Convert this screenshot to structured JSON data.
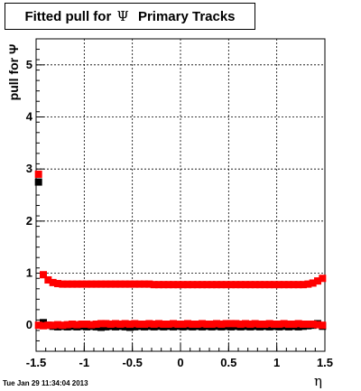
{
  "title": {
    "prefix": "Fitted pull for ",
    "greek": "Ψ",
    "suffix": "  Primary Tracks"
  },
  "footer": {
    "timestamp": "Tue Jan 29 11:34:04 2013"
  },
  "chart_data": {
    "type": "scatter",
    "title": "Fitted pull for Ψ  Primary Tracks",
    "xlabel": "η",
    "ylabel": "pull for Ψ",
    "xlim": [
      -1.5,
      1.5
    ],
    "ylim": [
      -0.5,
      5.5
    ],
    "grid": true,
    "x_ticks": [
      -1.5,
      -1,
      -0.5,
      0,
      0.5,
      1,
      1.5
    ],
    "x_tick_labels": [
      "-1.5",
      "-1",
      "-0.5",
      "0",
      "0.5",
      "1",
      "1.5"
    ],
    "y_ticks": [
      0,
      1,
      2,
      3,
      4,
      5
    ],
    "y_tick_labels": [
      "0",
      "1",
      "2",
      "3",
      "4",
      "5"
    ],
    "series": [
      {
        "color": "#000000",
        "x": [
          -1.475,
          -1.425,
          -1.375,
          -1.325,
          -1.275,
          -1.225,
          -1.175,
          -1.125,
          -1.075,
          -1.025,
          -0.975,
          -0.925,
          -0.875,
          -0.825,
          -0.775,
          -0.725,
          -0.675,
          -0.625,
          -0.575,
          -0.525,
          -0.475,
          -0.425,
          -0.375,
          -0.325,
          -0.275,
          -0.225,
          -0.175,
          -0.125,
          -0.075,
          -0.025,
          0.025,
          0.075,
          0.125,
          0.175,
          0.225,
          0.275,
          0.325,
          0.375,
          0.425,
          0.475,
          0.525,
          0.575,
          0.625,
          0.675,
          0.725,
          0.775,
          0.825,
          0.875,
          0.925,
          0.975,
          1.025,
          1.075,
          1.125,
          1.175,
          1.225,
          1.275,
          1.325,
          1.375,
          1.425,
          1.475
        ],
        "y": [
          2.75,
          0.05,
          0.0,
          -0.02,
          -0.03,
          -0.02,
          -0.03,
          -0.02,
          -0.03,
          -0.02,
          -0.03,
          -0.02,
          -0.03,
          -0.04,
          -0.03,
          -0.02,
          -0.03,
          -0.02,
          -0.03,
          -0.04,
          -0.03,
          -0.02,
          -0.03,
          -0.02,
          -0.03,
          -0.02,
          -0.03,
          -0.02,
          -0.03,
          -0.02,
          -0.03,
          -0.02,
          -0.03,
          -0.02,
          -0.03,
          -0.02,
          -0.03,
          -0.02,
          -0.03,
          -0.02,
          -0.03,
          -0.02,
          -0.03,
          -0.02,
          -0.03,
          -0.02,
          -0.03,
          -0.02,
          -0.03,
          -0.02,
          -0.03,
          -0.02,
          -0.03,
          -0.02,
          -0.03,
          -0.02,
          -0.01,
          0.0,
          0.03,
          -0.02
        ]
      },
      {
        "color": "#ff0000",
        "x": [
          -1.475,
          -1.425,
          -1.375,
          -1.325,
          -1.275,
          -1.225,
          -1.175,
          -1.125,
          -1.075,
          -1.025,
          -0.975,
          -0.925,
          -0.875,
          -0.825,
          -0.775,
          -0.725,
          -0.675,
          -0.625,
          -0.575,
          -0.525,
          -0.475,
          -0.425,
          -0.375,
          -0.325,
          -0.275,
          -0.225,
          -0.175,
          -0.125,
          -0.075,
          -0.025,
          0.025,
          0.075,
          0.125,
          0.175,
          0.225,
          0.275,
          0.325,
          0.375,
          0.425,
          0.475,
          0.525,
          0.575,
          0.625,
          0.675,
          0.725,
          0.775,
          0.825,
          0.875,
          0.925,
          0.975,
          1.025,
          1.075,
          1.125,
          1.175,
          1.225,
          1.275,
          1.325,
          1.375,
          1.425,
          1.475
        ],
        "y": [
          2.9,
          0.97,
          0.87,
          0.82,
          0.8,
          0.79,
          0.79,
          0.79,
          0.79,
          0.79,
          0.79,
          0.79,
          0.79,
          0.79,
          0.79,
          0.79,
          0.79,
          0.79,
          0.79,
          0.79,
          0.79,
          0.79,
          0.79,
          0.79,
          0.78,
          0.78,
          0.78,
          0.78,
          0.78,
          0.78,
          0.78,
          0.78,
          0.78,
          0.78,
          0.78,
          0.78,
          0.78,
          0.78,
          0.78,
          0.78,
          0.78,
          0.78,
          0.78,
          0.78,
          0.78,
          0.78,
          0.78,
          0.78,
          0.78,
          0.78,
          0.78,
          0.78,
          0.78,
          0.78,
          0.78,
          0.78,
          0.79,
          0.81,
          0.85,
          0.9
        ]
      },
      {
        "color": "#ff0000",
        "x": [
          -1.475,
          -1.425,
          -1.375,
          -1.325,
          -1.275,
          -1.225,
          -1.175,
          -1.125,
          -1.075,
          -1.025,
          -0.975,
          -0.925,
          -0.875,
          -0.825,
          -0.775,
          -0.725,
          -0.675,
          -0.625,
          -0.575,
          -0.525,
          -0.475,
          -0.425,
          -0.375,
          -0.325,
          -0.275,
          -0.225,
          -0.175,
          -0.125,
          -0.075,
          -0.025,
          0.025,
          0.075,
          0.125,
          0.175,
          0.225,
          0.275,
          0.325,
          0.375,
          0.425,
          0.475,
          0.525,
          0.575,
          0.625,
          0.675,
          0.725,
          0.775,
          0.825,
          0.875,
          0.925,
          0.975,
          1.025,
          1.075,
          1.125,
          1.175,
          1.225,
          1.275,
          1.325,
          1.375,
          1.425,
          1.475
        ],
        "y": [
          0.0,
          -0.01,
          0.0,
          0.0,
          0.01,
          0.0,
          0.01,
          0.02,
          0.01,
          0.02,
          0.02,
          0.01,
          0.02,
          0.03,
          0.03,
          0.02,
          0.03,
          0.02,
          0.03,
          0.02,
          0.03,
          0.02,
          0.02,
          0.03,
          0.02,
          0.03,
          0.02,
          0.02,
          0.03,
          0.02,
          0.02,
          0.03,
          0.02,
          0.02,
          0.03,
          0.02,
          0.02,
          0.03,
          0.02,
          0.03,
          0.03,
          0.03,
          0.02,
          0.03,
          0.02,
          0.03,
          0.02,
          0.02,
          0.03,
          0.02,
          0.02,
          0.03,
          0.02,
          0.02,
          0.03,
          0.02,
          0.02,
          0.02,
          0.01,
          0.0
        ]
      }
    ]
  }
}
